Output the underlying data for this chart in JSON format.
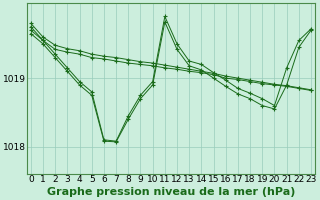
{
  "background_color": "#cceedd",
  "plot_bg_color": "#cceedd",
  "line_color": "#1a6b1a",
  "marker_color": "#1a6b1a",
  "grid_color": "#99ccbb",
  "xlabel": "Graphe pression niveau de la mer (hPa)",
  "yticks": [
    1018,
    1019
  ],
  "xticks": [
    0,
    1,
    2,
    3,
    4,
    5,
    6,
    7,
    8,
    9,
    10,
    11,
    12,
    13,
    14,
    15,
    16,
    17,
    18,
    19,
    20,
    21,
    22,
    23
  ],
  "xlim": [
    -0.3,
    23.3
  ],
  "ylim": [
    1017.6,
    1020.1
  ],
  "series": [
    [
      1019.75,
      1019.55,
      1019.42,
      1019.38,
      1019.35,
      1019.3,
      1019.28,
      1019.25,
      1019.22,
      1019.2,
      1019.18,
      1019.15,
      1019.13,
      1019.1,
      1019.08,
      1019.05,
      1019.0,
      1018.98,
      1018.95,
      1018.92,
      1018.9,
      1018.88,
      1018.85,
      1018.82
    ],
    [
      1019.8,
      1019.6,
      1019.48,
      1019.43,
      1019.4,
      1019.35,
      1019.32,
      1019.3,
      1019.27,
      1019.24,
      1019.22,
      1019.19,
      1019.16,
      1019.13,
      1019.1,
      1019.07,
      1019.03,
      1019.0,
      1018.97,
      1018.94,
      1018.91,
      1018.89,
      1018.86,
      1018.83
    ],
    [
      1019.7,
      1019.55,
      1019.35,
      1019.15,
      1018.95,
      1018.8,
      1018.1,
      1018.08,
      1018.45,
      1018.75,
      1018.95,
      1019.9,
      1019.5,
      1019.25,
      1019.2,
      1019.08,
      1018.97,
      1018.85,
      1018.78,
      1018.7,
      1018.6,
      1019.15,
      1019.55,
      1019.72
    ],
    [
      1019.65,
      1019.5,
      1019.3,
      1019.1,
      1018.9,
      1018.75,
      1018.08,
      1018.07,
      1018.4,
      1018.7,
      1018.9,
      1019.82,
      1019.42,
      1019.18,
      1019.12,
      1019.0,
      1018.88,
      1018.77,
      1018.7,
      1018.6,
      1018.55,
      1018.9,
      1019.45,
      1019.7
    ]
  ],
  "title_fontsize": 8,
  "tick_fontsize": 6.5,
  "linewidth": 0.7,
  "markersize": 3.5,
  "markeredgewidth": 0.8
}
